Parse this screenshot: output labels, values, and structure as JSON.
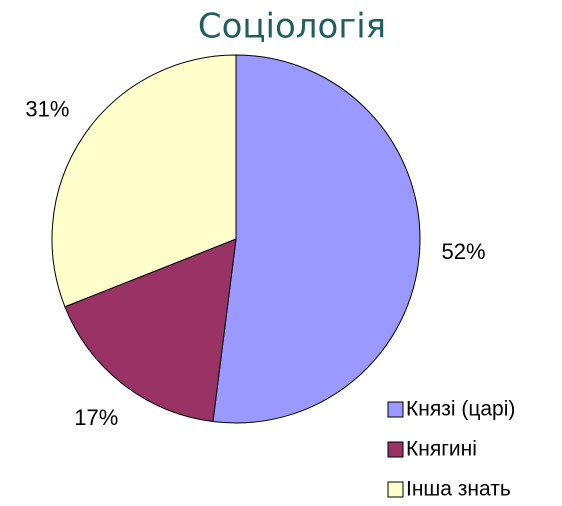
{
  "chart_data": {
    "type": "pie",
    "title": "Соціологія",
    "categories": [
      "Князі (царі)",
      "Княгині",
      "Інша знать"
    ],
    "values": [
      52,
      17,
      31
    ],
    "value_labels": [
      "52%",
      "17%",
      "31%"
    ],
    "colors": [
      "#9999ff",
      "#993366",
      "#ffffcc"
    ]
  }
}
